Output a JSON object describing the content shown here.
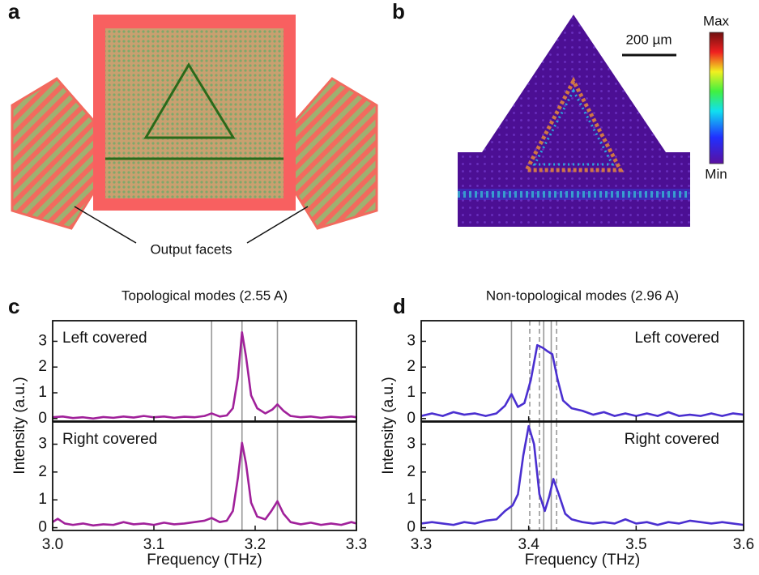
{
  "figure": {
    "panel_a": "a",
    "panel_b": "b",
    "output_facets": "Output facets",
    "scale_bar": "200 µm",
    "colorbar_max": "Max",
    "colorbar_min": "Min"
  },
  "chart_data": [
    {
      "type": "line",
      "panel": "c",
      "title": "Topological modes (2.55 A)",
      "xlabel": "Frequency (THz)",
      "ylabel": "Intensity (a.u.)",
      "xlim": [
        3.0,
        3.3
      ],
      "xticks": [
        {
          "value": 3.0,
          "label": "3.0"
        },
        3.1,
        3.2,
        3.3
      ],
      "subplots": [
        {
          "label": "Left covered",
          "label_corner": "upper left",
          "ylim": [
            -0.1,
            3.8
          ],
          "yticks": [
            0,
            1,
            2,
            3
          ],
          "vlines": [
            3.157,
            3.187,
            3.222
          ],
          "dashed_vlines": [],
          "series": [
            {
              "color": "#a0209a",
              "x": [
                3.0,
                3.01,
                3.02,
                3.03,
                3.04,
                3.05,
                3.06,
                3.07,
                3.08,
                3.09,
                3.1,
                3.11,
                3.12,
                3.13,
                3.14,
                3.15,
                3.157,
                3.165,
                3.172,
                3.178,
                3.183,
                3.187,
                3.191,
                3.196,
                3.202,
                3.21,
                3.217,
                3.222,
                3.228,
                3.235,
                3.245,
                3.255,
                3.265,
                3.275,
                3.285,
                3.295,
                3.3
              ],
              "values": [
                0.05,
                0.08,
                0.02,
                0.05,
                0.0,
                0.06,
                0.03,
                0.08,
                0.04,
                0.1,
                0.05,
                0.08,
                0.03,
                0.07,
                0.05,
                0.1,
                0.2,
                0.08,
                0.12,
                0.4,
                1.6,
                3.35,
                2.4,
                0.9,
                0.4,
                0.2,
                0.35,
                0.55,
                0.3,
                0.1,
                0.05,
                0.08,
                0.03,
                0.07,
                0.04,
                0.08,
                0.05
              ]
            }
          ]
        },
        {
          "label": "Right covered",
          "label_corner": "upper left",
          "ylim": [
            -0.1,
            3.8
          ],
          "yticks": [
            0,
            1,
            2,
            3
          ],
          "vlines": [
            3.157,
            3.187,
            3.222
          ],
          "dashed_vlines": [],
          "series": [
            {
              "color": "#a0209a",
              "x": [
                3.0,
                3.005,
                3.012,
                3.02,
                3.03,
                3.04,
                3.05,
                3.06,
                3.07,
                3.08,
                3.09,
                3.1,
                3.11,
                3.12,
                3.13,
                3.14,
                3.15,
                3.157,
                3.165,
                3.172,
                3.178,
                3.183,
                3.187,
                3.191,
                3.196,
                3.202,
                3.21,
                3.216,
                3.222,
                3.228,
                3.235,
                3.245,
                3.255,
                3.265,
                3.275,
                3.285,
                3.295,
                3.3
              ],
              "values": [
                0.2,
                0.32,
                0.15,
                0.1,
                0.15,
                0.08,
                0.12,
                0.1,
                0.2,
                0.12,
                0.15,
                0.1,
                0.18,
                0.12,
                0.15,
                0.2,
                0.25,
                0.35,
                0.2,
                0.25,
                0.6,
                1.8,
                3.05,
                2.3,
                0.9,
                0.4,
                0.3,
                0.6,
                0.95,
                0.5,
                0.2,
                0.12,
                0.18,
                0.1,
                0.15,
                0.1,
                0.2,
                0.15
              ]
            }
          ]
        }
      ]
    },
    {
      "type": "line",
      "panel": "d",
      "title": "Non-topological modes (2.96 A)",
      "xlabel": "Frequency (THz)",
      "ylabel": "Intensity (a.u.)",
      "xlim": [
        3.3,
        3.6
      ],
      "xticks": [
        3.3,
        3.4,
        3.5,
        3.6
      ],
      "subplots": [
        {
          "label": "Left covered",
          "label_corner": "upper right",
          "ylim": [
            -0.1,
            3.8
          ],
          "yticks": [
            0,
            1,
            2,
            3
          ],
          "vlines": [
            3.384,
            3.414,
            3.421
          ],
          "dashed_vlines": [
            3.401,
            3.41,
            3.426
          ],
          "series": [
            {
              "color": "#4a2fd0",
              "x": [
                3.3,
                3.31,
                3.32,
                3.33,
                3.34,
                3.35,
                3.36,
                3.37,
                3.378,
                3.384,
                3.39,
                3.396,
                3.402,
                3.408,
                3.413,
                3.418,
                3.422,
                3.427,
                3.432,
                3.44,
                3.45,
                3.46,
                3.47,
                3.48,
                3.49,
                3.5,
                3.51,
                3.52,
                3.53,
                3.54,
                3.55,
                3.56,
                3.57,
                3.58,
                3.59,
                3.6
              ],
              "values": [
                0.1,
                0.2,
                0.1,
                0.25,
                0.15,
                0.2,
                0.1,
                0.2,
                0.5,
                0.95,
                0.45,
                0.6,
                1.5,
                2.85,
                2.75,
                2.6,
                2.5,
                1.5,
                0.7,
                0.4,
                0.3,
                0.15,
                0.25,
                0.1,
                0.2,
                0.1,
                0.2,
                0.1,
                0.25,
                0.1,
                0.15,
                0.1,
                0.2,
                0.1,
                0.2,
                0.15
              ]
            }
          ]
        },
        {
          "label": "Right covered",
          "label_corner": "upper right",
          "ylim": [
            -0.1,
            3.8
          ],
          "yticks": [
            0,
            1,
            2,
            3
          ],
          "vlines": [
            3.384,
            3.414,
            3.421
          ],
          "dashed_vlines": [
            3.401,
            3.41,
            3.426
          ],
          "series": [
            {
              "color": "#4a2fd0",
              "x": [
                3.3,
                3.31,
                3.32,
                3.33,
                3.34,
                3.35,
                3.36,
                3.37,
                3.378,
                3.385,
                3.39,
                3.395,
                3.4,
                3.405,
                3.41,
                3.415,
                3.419,
                3.423,
                3.428,
                3.434,
                3.44,
                3.45,
                3.46,
                3.47,
                3.48,
                3.49,
                3.5,
                3.51,
                3.52,
                3.53,
                3.54,
                3.55,
                3.56,
                3.57,
                3.58,
                3.59,
                3.6
              ],
              "values": [
                0.15,
                0.2,
                0.15,
                0.1,
                0.2,
                0.15,
                0.25,
                0.3,
                0.6,
                0.8,
                1.2,
                2.6,
                3.65,
                3.0,
                1.2,
                0.6,
                1.1,
                1.75,
                1.2,
                0.5,
                0.3,
                0.2,
                0.15,
                0.2,
                0.15,
                0.3,
                0.15,
                0.2,
                0.1,
                0.2,
                0.15,
                0.25,
                0.2,
                0.15,
                0.2,
                0.15,
                0.1
              ]
            }
          ]
        }
      ]
    }
  ]
}
